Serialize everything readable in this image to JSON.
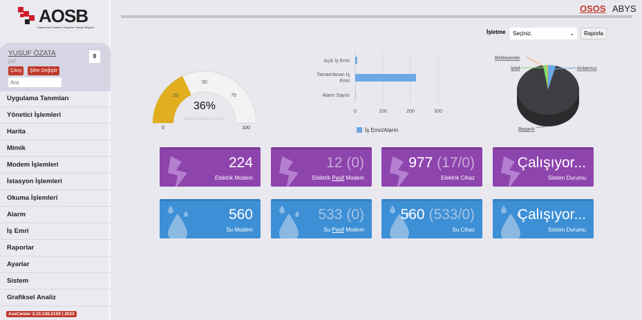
{
  "logo": {
    "text": "AOSB",
    "subtitle": "Adana Hacı Sabancı Organize Sanayi Bölgesi"
  },
  "user": {
    "name": "YUSUF ÖZATA",
    "login": "ysf",
    "notifications": "0",
    "logout": "Çıkış",
    "change_password": "Şifre Değiştir",
    "search_placeholder": "Ara"
  },
  "menu": [
    "Uygulama Tanımları",
    "Yönetici İşlemleri",
    "Harita",
    "Mimik",
    "Modem İşlemleri",
    "İstasyon İşlemleri",
    "Okuma İşlemleri",
    "Alarm",
    "İş Emri",
    "Raporlar",
    "Ayarlar",
    "Sistem",
    "Grafiksel Analiz"
  ],
  "version": "AceCenter 3.10.138.2159 | 2023",
  "header": {
    "osos": "OSOS",
    "abys": "ABYS"
  },
  "filter": {
    "label": "İşletme",
    "selected": "Seçiniz.",
    "button": "Raporla"
  },
  "chart_data": [
    {
      "type": "gauge",
      "title": "Aktif Modem Oranı",
      "value": 36,
      "value_label": "36%",
      "min": 0,
      "max": 100,
      "ticks": [
        "0",
        "25",
        "50",
        "75",
        "100"
      ],
      "color": "#e0ae1f"
    },
    {
      "type": "bar",
      "orientation": "horizontal",
      "categories": [
        "Açık İş Emri",
        "Tamamlanan İş Emri",
        "Alarm Sayısı"
      ],
      "values": [
        7,
        220,
        0
      ],
      "xlim": [
        0,
        300
      ],
      "ticks": [
        "0",
        "100",
        "200",
        "300"
      ],
      "legend": "İş Emri/Alarm",
      "color": "#6aa9e6"
    },
    {
      "type": "pie",
      "labels": [
        "Başarılı",
        "Anlamsız",
        "İptal",
        "Bekleyenler"
      ],
      "values": [
        93.5,
        4,
        2,
        0.5
      ],
      "colors": [
        "#3a3a3e",
        "#6aa9e6",
        "#7ddf6a",
        "#f2a56a"
      ]
    }
  ],
  "cards": [
    {
      "value": "224",
      "extra": "",
      "label_pre": "Elektrik Modem",
      "label_u": "",
      "label_post": "",
      "type": "p"
    },
    {
      "value": "",
      "extra": "12 (0)",
      "label_pre": "Elektrik ",
      "label_u": "Pasif",
      "label_post": " Modem",
      "type": "p"
    },
    {
      "value": "977",
      "extra": " (17/0)",
      "label_pre": "Elektrik Cihaz",
      "label_u": "",
      "label_post": "",
      "type": "p"
    },
    {
      "value": "Çalışıyor...",
      "extra": "",
      "label_pre": "Sistem Durumu",
      "label_u": "",
      "label_post": "",
      "type": "p"
    },
    {
      "value": "560",
      "extra": "",
      "label_pre": "Su Modem",
      "label_u": "",
      "label_post": "",
      "type": "b"
    },
    {
      "value": "",
      "extra": "533 (0)",
      "label_pre": "Su ",
      "label_u": "Pasif",
      "label_post": " Modem",
      "type": "b"
    },
    {
      "value": "560",
      "extra": " (533/0)",
      "label_pre": "Su Cihaz",
      "label_u": "",
      "label_post": "",
      "type": "b"
    },
    {
      "value": "Çalışıyor...",
      "extra": "",
      "label_pre": "Sistem Durumu",
      "label_u": "",
      "label_post": "",
      "type": "b"
    }
  ]
}
